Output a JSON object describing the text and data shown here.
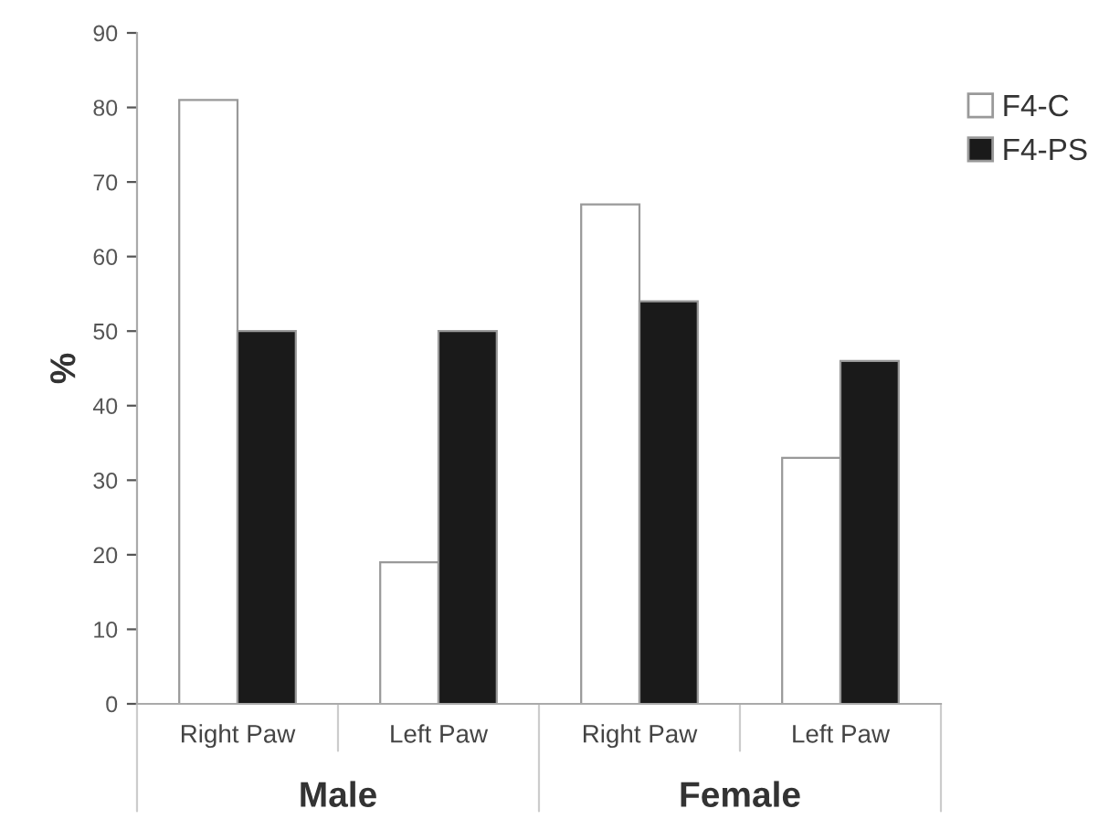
{
  "chart_data": {
    "type": "bar",
    "ylabel": "%",
    "categories": [
      "Right Paw",
      "Left Paw",
      "Right Paw",
      "Left Paw"
    ],
    "series": [
      {
        "name": "F4-C",
        "color": "#ffffff",
        "values": [
          81,
          19,
          67,
          33
        ]
      },
      {
        "name": "F4-PS",
        "color": "#1a1a1a",
        "values": [
          50,
          50,
          54,
          46
        ]
      }
    ],
    "ylim": [
      0,
      90
    ],
    "yticks": [
      0,
      10,
      20,
      30,
      40,
      50,
      60,
      70,
      80,
      90
    ],
    "annotations": [
      "Male",
      "Female"
    ],
    "grid": false,
    "legend": "top right"
  }
}
